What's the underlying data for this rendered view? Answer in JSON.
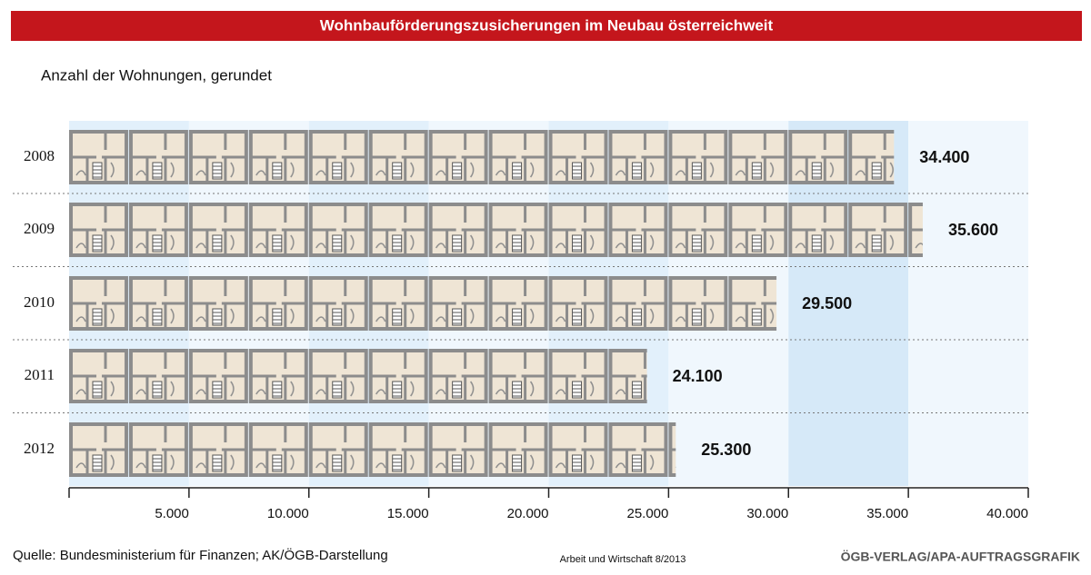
{
  "chart_data": {
    "type": "pictogram-bar",
    "title": "Wohnbauförderungszusicherungen im Neubau österreichweit",
    "subtitle": "Anzahl der Wohnungen, gerundet",
    "categories": [
      "2008",
      "2009",
      "2010",
      "2011",
      "2012"
    ],
    "values": [
      34400,
      35600,
      29500,
      24100,
      25300
    ],
    "value_labels": [
      "34.400",
      "35.600",
      "29.500",
      "24.100",
      "25.300"
    ],
    "xlim": [
      0,
      40000
    ],
    "xticks": [
      {
        "value": 5000,
        "label": "5.000"
      },
      {
        "value": 10000,
        "label": "10.000"
      },
      {
        "value": 15000,
        "label": "15.000"
      },
      {
        "value": 20000,
        "label": "20.000"
      },
      {
        "value": 25000,
        "label": "25.000"
      },
      {
        "value": 30000,
        "label": "30.000"
      },
      {
        "value": 35000,
        "label": "35.000"
      },
      {
        "value": 40000,
        "label": "40.000"
      }
    ],
    "source": "Quelle: Bundesministerium für Finanzen; AK/ÖGB-Darstellung",
    "publication": "Arbeit und Wirtschaft 8/2013",
    "credit": "ÖGB-VERLAG/APA-AUFTRAGSGRAFIK"
  }
}
